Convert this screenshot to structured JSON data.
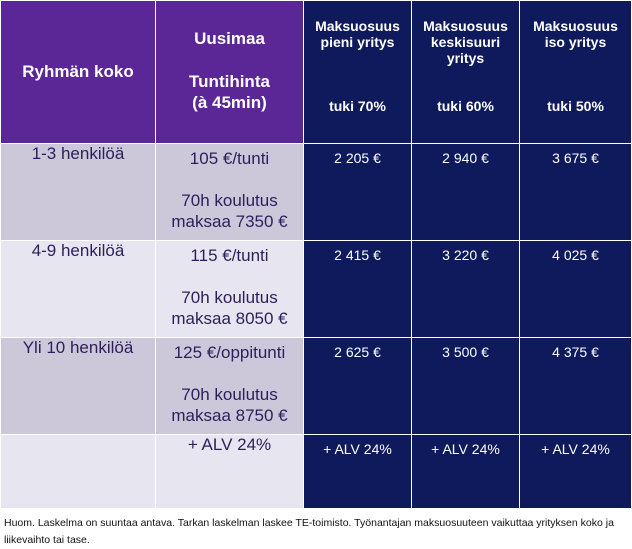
{
  "header": {
    "group_label": "Ryhmän koko",
    "region_title": "Uusimaa",
    "region_rate": "Tuntihinta\n(à 45min)",
    "columns": [
      {
        "name": "Maksuosuus\npieni yritys",
        "support": "tuki 70%"
      },
      {
        "name": "Maksuosuus\nkeskisuuri\nyritys",
        "support": "tuki 60%"
      },
      {
        "name": "Maksuosuus\niso yritys",
        "support": "tuki 50%"
      }
    ]
  },
  "rows": [
    {
      "group": "1-3 henkilöä",
      "rate": "105 €/tunti",
      "total": "70h koulutus\nmaksaa 7350 €",
      "amounts": [
        "2 205 €",
        "2 940 €",
        "3 675 €"
      ]
    },
    {
      "group": "4-9 henkilöä",
      "rate": "115 €/tunti",
      "total": "70h koulutus\nmaksaa 8050 €",
      "amounts": [
        "2 415 €",
        "3 220 €",
        "4 025 €"
      ]
    },
    {
      "group": "Yli 10 henkilöä",
      "rate": "125 €/oppitunti",
      "total": "70h koulutus\nmaksaa 8750 €",
      "amounts": [
        "2 625 €",
        "3 500 €",
        "4 375 €"
      ]
    }
  ],
  "footer_row": {
    "rate_vat": "+ ALV 24%",
    "amount_vat": [
      "+ ALV 24%",
      "+ ALV 24%",
      "+ ALV 24%"
    ]
  },
  "note": "Huom. Laskelma on suuntaa antava. Tarkan laskelman laskee TE-toimisto. Työnantajan maksuosuuteen vaikuttaa yrityksen koko ja liikevaihto tai tase.",
  "colors": {
    "header_purple": "#5b2696",
    "navy": "#0f1a5c",
    "lavender_dark": "#cdc7da",
    "lavender_light": "#e7e5ef"
  }
}
